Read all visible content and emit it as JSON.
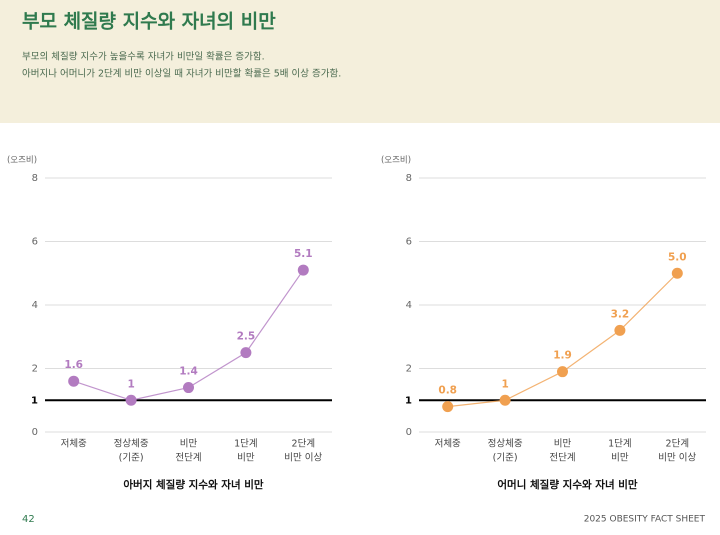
{
  "header": {
    "title": "부모 체질량 지수와 자녀의 비만",
    "subtitle": [
      "부모의 체질량 지수가 높을수록 자녀가 비만일 확률은 증가함.",
      "아버지나 어머니가 2단계 비만 이상일 때 자녀가 비만할 확률은 5배 이상 증가함."
    ]
  },
  "chart_data": [
    {
      "type": "line",
      "xlabel": "아버지 체질량 지수와 자녀 비만",
      "y_unit": "(오즈비)",
      "categories": [
        [
          "저체중"
        ],
        [
          "정상체중",
          "(기준)"
        ],
        [
          "비만",
          "전단계"
        ],
        [
          "1단계",
          "비만"
        ],
        [
          "2단계",
          "비만 이상"
        ]
      ],
      "values": [
        1.6,
        1,
        1.4,
        2.5,
        5.1
      ],
      "color": "#b27bc0",
      "ylim": [
        0,
        8
      ],
      "yticks": [
        0,
        1,
        2,
        4,
        6,
        8
      ],
      "reference_line": 1,
      "grid": true
    },
    {
      "type": "line",
      "xlabel": "어머니 체질량 지수와 자녀 비만",
      "y_unit": "(오즈비)",
      "categories": [
        [
          "저체중"
        ],
        [
          "정상체중",
          "(기준)"
        ],
        [
          "비만",
          "전단계"
        ],
        [
          "1단계",
          "비만"
        ],
        [
          "2단계",
          "비만 이상"
        ]
      ],
      "values": [
        0.8,
        1,
        1.9,
        3.2,
        5.0
      ],
      "value_labels": [
        "0.8",
        "1",
        "1.9",
        "3.2",
        "5.0"
      ],
      "color": "#f0a050",
      "ylim": [
        0,
        8
      ],
      "yticks": [
        0,
        1,
        2,
        4,
        6,
        8
      ],
      "reference_line": 1,
      "grid": true
    }
  ],
  "footer": {
    "page": "42",
    "source": "2025 OBESITY FACT SHEET"
  }
}
